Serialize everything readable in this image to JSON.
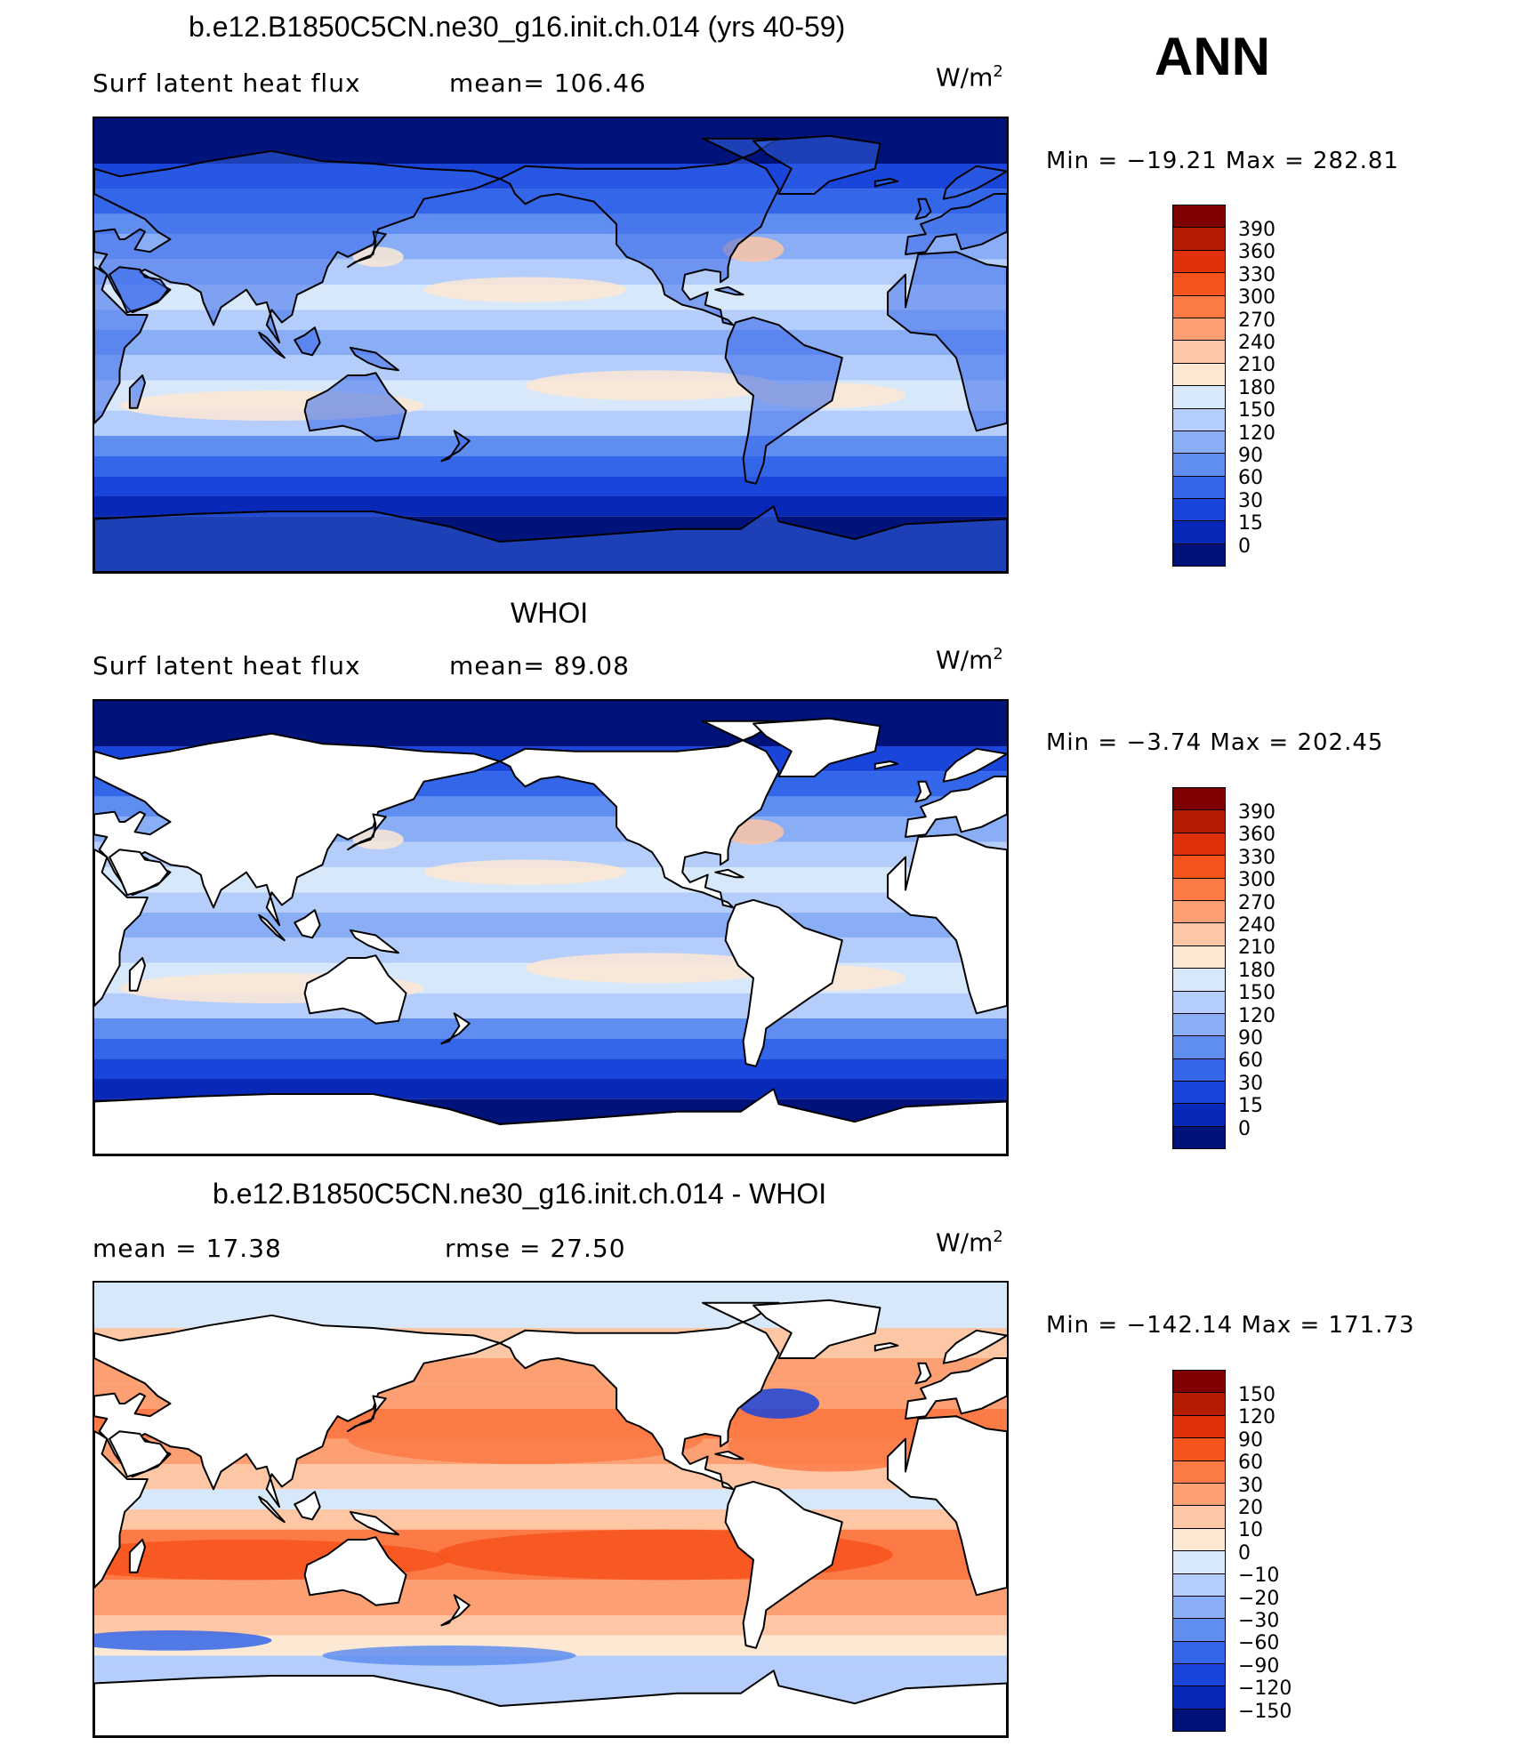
{
  "chart_data": [
    {
      "type": "heatmap",
      "title": "b.e12.B1850C5CN.ne30_g16.init.ch.014 (yrs 40-59)",
      "left_label": "Surf latent heat flux",
      "stat_label": "mean= 106.46",
      "units": "W/m",
      "units_exp": "2",
      "minmax": "Min = −19.21 Max = 282.81",
      "colorbar_labels": [
        "390",
        "360",
        "330",
        "300",
        "270",
        "240",
        "210",
        "180",
        "150",
        "120",
        "90",
        "60",
        "30",
        "15",
        "0"
      ],
      "colors": [
        "#7f0000",
        "#b31c00",
        "#e0310c",
        "#f7541d",
        "#fc7a45",
        "#fc9f72",
        "#fdc6a5",
        "#fde8d3",
        "#d8e8fb",
        "#b4cdfa",
        "#89aef6",
        "#5f8ef0",
        "#3466ea",
        "#1a45db",
        "#0829b7",
        "#00137a"
      ],
      "field": "model",
      "land_masked": false
    },
    {
      "type": "heatmap",
      "title": "WHOI",
      "left_label": "Surf latent heat flux",
      "stat_label": "mean=  89.08",
      "units": "W/m",
      "units_exp": "2",
      "minmax": "Min =  −3.74 Max = 202.45",
      "colorbar_labels": [
        "390",
        "360",
        "330",
        "300",
        "270",
        "240",
        "210",
        "180",
        "150",
        "120",
        "90",
        "60",
        "30",
        "15",
        "0"
      ],
      "colors": [
        "#7f0000",
        "#b31c00",
        "#e0310c",
        "#f7541d",
        "#fc7a45",
        "#fc9f72",
        "#fdc6a5",
        "#fde8d3",
        "#d8e8fb",
        "#b4cdfa",
        "#89aef6",
        "#5f8ef0",
        "#3466ea",
        "#1a45db",
        "#0829b7",
        "#00137a"
      ],
      "field": "obs",
      "land_masked": true
    },
    {
      "type": "heatmap",
      "title": "b.e12.B1850C5CN.ne30_g16.init.ch.014 - WHOI",
      "left_label": "mean =   17.38",
      "stat_label": "rmse =   27.50",
      "units": "W/m",
      "units_exp": "2",
      "minmax": "Min = −142.14 Max = 171.73",
      "colorbar_labels": [
        "150",
        "120",
        "90",
        "60",
        "30",
        "20",
        "10",
        "0",
        "−10",
        "−20",
        "−30",
        "−60",
        "−90",
        "−120",
        "−150"
      ],
      "colors": [
        "#7f0000",
        "#b31c00",
        "#e0310c",
        "#f7541d",
        "#fc7a45",
        "#fc9f72",
        "#fdc6a5",
        "#fde8d3",
        "#d8e8fb",
        "#b4cdfa",
        "#89aef6",
        "#5f8ef0",
        "#3466ea",
        "#1a45db",
        "#0829b7",
        "#00137a"
      ],
      "field": "diff",
      "land_masked": true
    }
  ],
  "season": "ANN"
}
